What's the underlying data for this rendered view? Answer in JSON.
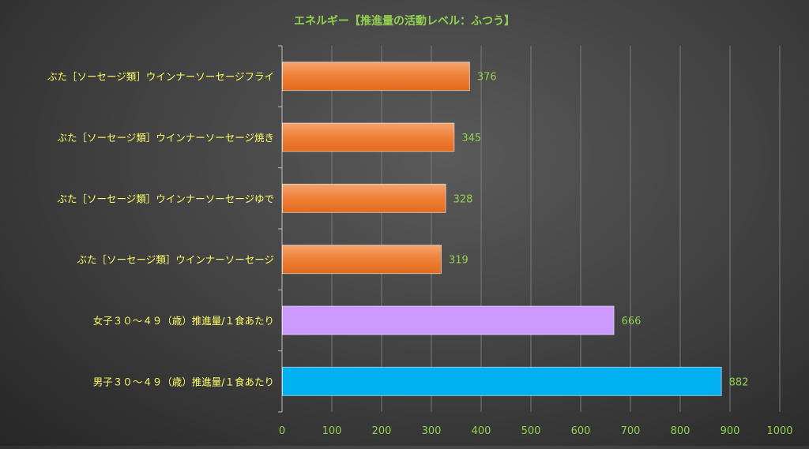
{
  "chart_data": {
    "type": "bar",
    "orientation": "horizontal",
    "title": "エネルギー【推進量の活動レベル：ふつう】",
    "xlabel": "",
    "ylabel": "",
    "xlim": [
      0,
      1000
    ],
    "x_ticks": [
      "0",
      "100",
      "200",
      "300",
      "400",
      "500",
      "600",
      "700",
      "800",
      "900",
      "1000"
    ],
    "grid": "vertical",
    "legend": "none",
    "categories": [
      "ぶた［ソーセージ類］ウインナーソーセージフライ",
      "ぶた［ソーセージ類］ウインナーソーセージ焼き",
      "ぶた［ソーセージ類］ウインナーソーセージゆで",
      "ぶた［ソーセージ類］ウインナーソーセージ",
      "女子３０～４９（歳）推進量/１食あたり",
      "男子３０～４９（歳）推進量/１食あたり"
    ],
    "values": [
      376,
      345,
      328,
      319,
      666,
      882
    ],
    "value_labels": [
      "376",
      "345",
      "328",
      "319",
      "666",
      "882"
    ],
    "bar_colors": [
      "#ed7d31",
      "#ed7d31",
      "#ed7d31",
      "#ed7d31",
      "#cc99ff",
      "#00b0f0"
    ],
    "colors": {
      "title": "#92d050",
      "category_text": "#ffff66",
      "value_text": "#92d050",
      "tick_text": "#92d050",
      "grid": "#7a7a7a",
      "axis": "#bfbfbf"
    }
  }
}
